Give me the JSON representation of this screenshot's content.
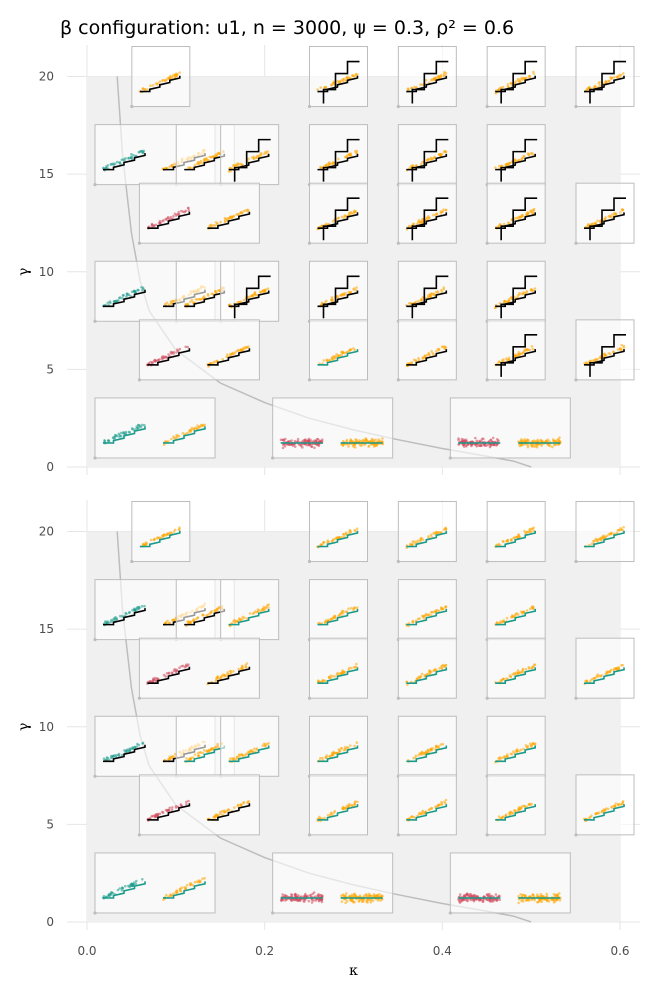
{
  "header": {
    "title": "β configuration: u1, n = 3000, ψ = 0.3, ρ² = 0.6"
  },
  "colors": {
    "panel_bg": "#f0f0f0",
    "grid": "#e6e6e6",
    "curve": "#bdbdbd",
    "inset_border": "#bdbdbd",
    "orange": "#ffa500",
    "red": "#d1495b",
    "teal": "#1a9a8a",
    "black": "#000000",
    "axis_text": "#4d4d4d"
  },
  "chart_data": {
    "type": "scatter",
    "xlabel": "κ",
    "ylabel": "γ",
    "xlim": [
      0,
      0.6
    ],
    "ylim": [
      0,
      21
    ],
    "x_ticks": [
      "0.0",
      "0.2",
      "0.4",
      "0.6"
    ],
    "x_tick_values": [
      0,
      0.2,
      0.4,
      0.6
    ],
    "y_ticks": [
      "0",
      "5",
      "10",
      "15",
      "20"
    ],
    "y_tick_values": [
      0,
      5,
      10,
      15,
      20
    ],
    "shaded_region": {
      "x": [
        0,
        0.6
      ],
      "y": [
        0,
        20
      ]
    },
    "curve": {
      "description_kappa_min": 0.034,
      "points": [
        [
          0.034,
          20
        ],
        [
          0.04,
          16
        ],
        [
          0.05,
          12
        ],
        [
          0.06,
          9.5
        ],
        [
          0.07,
          8
        ],
        [
          0.1,
          6
        ],
        [
          0.15,
          4.3
        ],
        [
          0.2,
          3.3
        ],
        [
          0.25,
          2.5
        ],
        [
          0.3,
          1.9
        ],
        [
          0.35,
          1.4
        ],
        [
          0.4,
          0.95
        ],
        [
          0.45,
          0.55
        ],
        [
          0.48,
          0.3
        ],
        [
          0.5,
          0
        ]
      ]
    },
    "panels": [
      {
        "insets": [
          {
            "kappa": 0.1,
            "gamma": 20,
            "kind": "single",
            "color": "orange",
            "step": "black"
          },
          {
            "kappa": 0.3,
            "gamma": 20,
            "kind": "single",
            "color": "orange",
            "step": "black-offset"
          },
          {
            "kappa": 0.4,
            "gamma": 20,
            "kind": "single",
            "color": "orange",
            "step": "black-offset"
          },
          {
            "kappa": 0.5,
            "gamma": 20,
            "kind": "single",
            "color": "orange",
            "step": "black-offset"
          },
          {
            "kappa": 0.6,
            "gamma": 20,
            "kind": "single",
            "color": "orange",
            "step": "black-offset"
          },
          {
            "kappa": 0.0,
            "gamma": 16,
            "kind": "pair",
            "colors": [
              "teal",
              "orange"
            ],
            "step": "black"
          },
          {
            "kappa": 0.15,
            "gamma": 16,
            "kind": "single",
            "color": "orange",
            "step": "black"
          },
          {
            "kappa": 0.2,
            "gamma": 16,
            "kind": "single",
            "color": "orange",
            "step": "black-offset"
          },
          {
            "kappa": 0.3,
            "gamma": 16,
            "kind": "single",
            "color": "orange",
            "step": "black-offset"
          },
          {
            "kappa": 0.4,
            "gamma": 16,
            "kind": "single",
            "color": "orange",
            "step": "black-offset"
          },
          {
            "kappa": 0.5,
            "gamma": 16,
            "kind": "single",
            "color": "orange",
            "step": "black-offset"
          },
          {
            "kappa": 0.05,
            "gamma": 13,
            "kind": "pair",
            "colors": [
              "red",
              "orange"
            ],
            "step": "black"
          },
          {
            "kappa": 0.3,
            "gamma": 13,
            "kind": "single",
            "color": "orange",
            "step": "black-offset"
          },
          {
            "kappa": 0.4,
            "gamma": 13,
            "kind": "single",
            "color": "orange",
            "step": "black-offset"
          },
          {
            "kappa": 0.5,
            "gamma": 13,
            "kind": "single",
            "color": "orange",
            "step": "black-offset"
          },
          {
            "kappa": 0.6,
            "gamma": 13,
            "kind": "single",
            "color": "orange",
            "step": "black-offset"
          },
          {
            "kappa": 0.0,
            "gamma": 9,
            "kind": "pair",
            "colors": [
              "teal",
              "orange"
            ],
            "step": "black"
          },
          {
            "kappa": 0.15,
            "gamma": 9,
            "kind": "single",
            "color": "orange",
            "step": "black"
          },
          {
            "kappa": 0.2,
            "gamma": 9,
            "kind": "single",
            "color": "orange",
            "step": "black-offset"
          },
          {
            "kappa": 0.3,
            "gamma": 9,
            "kind": "single",
            "color": "orange",
            "step": "black-offset"
          },
          {
            "kappa": 0.4,
            "gamma": 9,
            "kind": "single",
            "color": "orange",
            "step": "black-offset"
          },
          {
            "kappa": 0.5,
            "gamma": 9,
            "kind": "single",
            "color": "orange",
            "step": "black-offset"
          },
          {
            "kappa": 0.05,
            "gamma": 6,
            "kind": "pair",
            "colors": [
              "red",
              "orange"
            ],
            "step": "black"
          },
          {
            "kappa": 0.3,
            "gamma": 6,
            "kind": "single",
            "color": "orange",
            "step": "teal"
          },
          {
            "kappa": 0.4,
            "gamma": 6,
            "kind": "single",
            "color": "orange",
            "step": "black"
          },
          {
            "kappa": 0.5,
            "gamma": 6,
            "kind": "single",
            "color": "orange",
            "step": "black-offset"
          },
          {
            "kappa": 0.6,
            "gamma": 6,
            "kind": "single",
            "color": "orange",
            "step": "black-offset"
          },
          {
            "kappa": 0.0,
            "gamma": 2,
            "kind": "pair",
            "colors": [
              "teal",
              "orange"
            ],
            "step": "teal"
          },
          {
            "kappa": 0.2,
            "gamma": 2,
            "kind": "pair",
            "colors": [
              "red",
              "orange"
            ],
            "step": "teal",
            "flat": true
          },
          {
            "kappa": 0.4,
            "gamma": 2,
            "kind": "pair",
            "colors": [
              "red",
              "orange"
            ],
            "step": "teal",
            "flat": true
          }
        ]
      },
      {
        "insets": [
          {
            "kappa": 0.1,
            "gamma": 20,
            "kind": "single",
            "color": "orange",
            "step": "teal"
          },
          {
            "kappa": 0.3,
            "gamma": 20,
            "kind": "single",
            "color": "orange",
            "step": "teal"
          },
          {
            "kappa": 0.4,
            "gamma": 20,
            "kind": "single",
            "color": "orange",
            "step": "teal"
          },
          {
            "kappa": 0.5,
            "gamma": 20,
            "kind": "single",
            "color": "orange",
            "step": "teal"
          },
          {
            "kappa": 0.6,
            "gamma": 20,
            "kind": "single",
            "color": "orange",
            "step": "teal"
          },
          {
            "kappa": 0.0,
            "gamma": 16,
            "kind": "pair",
            "colors": [
              "teal",
              "orange"
            ],
            "step": "black"
          },
          {
            "kappa": 0.15,
            "gamma": 16,
            "kind": "single",
            "color": "orange",
            "step": "black"
          },
          {
            "kappa": 0.2,
            "gamma": 16,
            "kind": "single",
            "color": "orange",
            "step": "teal"
          },
          {
            "kappa": 0.3,
            "gamma": 16,
            "kind": "single",
            "color": "orange",
            "step": "teal"
          },
          {
            "kappa": 0.4,
            "gamma": 16,
            "kind": "single",
            "color": "orange",
            "step": "teal"
          },
          {
            "kappa": 0.5,
            "gamma": 16,
            "kind": "single",
            "color": "orange",
            "step": "teal"
          },
          {
            "kappa": 0.05,
            "gamma": 13,
            "kind": "pair",
            "colors": [
              "red",
              "orange"
            ],
            "step": "black"
          },
          {
            "kappa": 0.3,
            "gamma": 13,
            "kind": "single",
            "color": "orange",
            "step": "teal"
          },
          {
            "kappa": 0.4,
            "gamma": 13,
            "kind": "single",
            "color": "orange",
            "step": "teal"
          },
          {
            "kappa": 0.5,
            "gamma": 13,
            "kind": "single",
            "color": "orange",
            "step": "teal"
          },
          {
            "kappa": 0.6,
            "gamma": 13,
            "kind": "single",
            "color": "orange",
            "step": "teal"
          },
          {
            "kappa": 0.0,
            "gamma": 9,
            "kind": "pair",
            "colors": [
              "teal",
              "orange"
            ],
            "step": "black"
          },
          {
            "kappa": 0.15,
            "gamma": 9,
            "kind": "single",
            "color": "orange",
            "step": "teal"
          },
          {
            "kappa": 0.2,
            "gamma": 9,
            "kind": "single",
            "color": "orange",
            "step": "teal"
          },
          {
            "kappa": 0.3,
            "gamma": 9,
            "kind": "single",
            "color": "orange",
            "step": "teal"
          },
          {
            "kappa": 0.4,
            "gamma": 9,
            "kind": "single",
            "color": "orange",
            "step": "teal"
          },
          {
            "kappa": 0.5,
            "gamma": 9,
            "kind": "single",
            "color": "orange",
            "step": "teal"
          },
          {
            "kappa": 0.05,
            "gamma": 6,
            "kind": "pair",
            "colors": [
              "red",
              "orange"
            ],
            "step": "black"
          },
          {
            "kappa": 0.3,
            "gamma": 6,
            "kind": "single",
            "color": "orange",
            "step": "teal"
          },
          {
            "kappa": 0.4,
            "gamma": 6,
            "kind": "single",
            "color": "orange",
            "step": "teal"
          },
          {
            "kappa": 0.5,
            "gamma": 6,
            "kind": "single",
            "color": "orange",
            "step": "teal"
          },
          {
            "kappa": 0.6,
            "gamma": 6,
            "kind": "single",
            "color": "orange",
            "step": "teal"
          },
          {
            "kappa": 0.0,
            "gamma": 2,
            "kind": "pair",
            "colors": [
              "teal",
              "orange"
            ],
            "step": "teal"
          },
          {
            "kappa": 0.2,
            "gamma": 2,
            "kind": "pair",
            "colors": [
              "red",
              "orange"
            ],
            "step": "teal",
            "flat": true
          },
          {
            "kappa": 0.4,
            "gamma": 2,
            "kind": "pair",
            "colors": [
              "red",
              "orange"
            ],
            "step": "teal",
            "flat": true
          }
        ]
      }
    ]
  }
}
